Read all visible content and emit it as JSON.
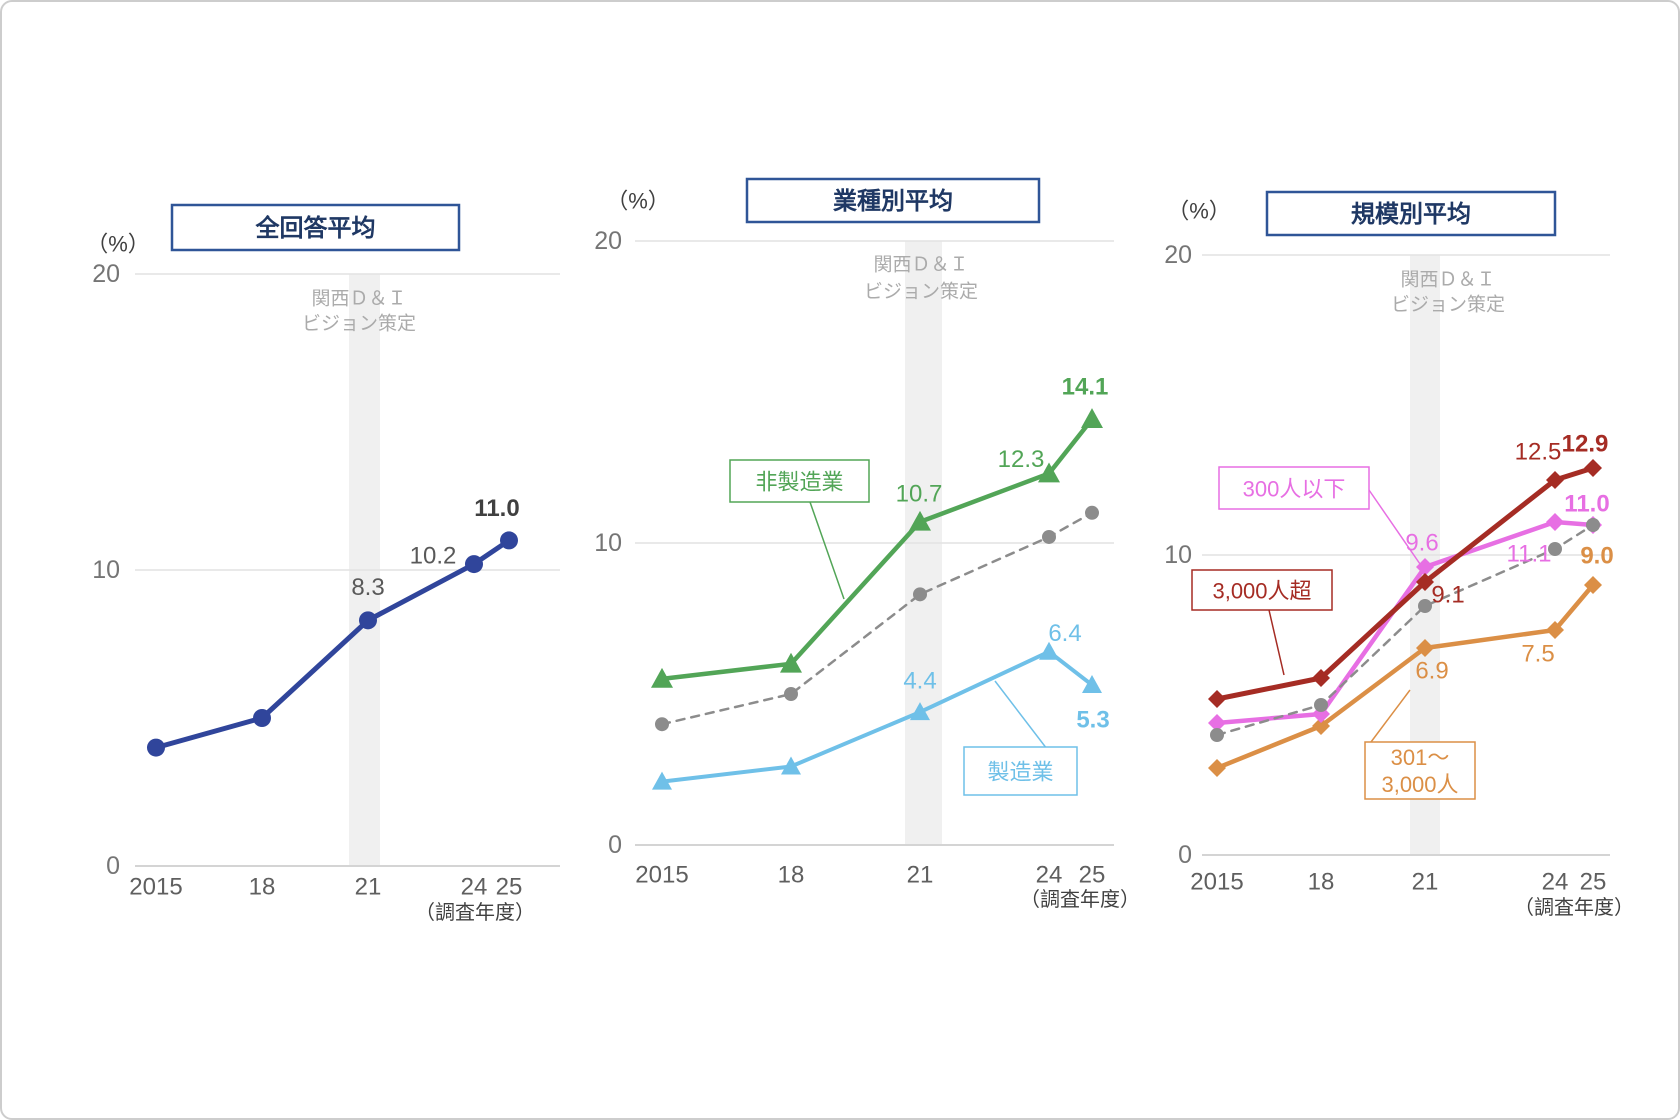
{
  "page": {
    "background": "#FFFFFF",
    "frame_color": "#CDCDCD"
  },
  "chart_data": [
    {
      "id": "overall-average",
      "type": "line",
      "title": "全回答平均",
      "unit": "（%）",
      "x_categories": [
        "2015",
        "18",
        "21",
        "24",
        "25"
      ],
      "x_axis_note": "（調査年度）",
      "ylim": [
        0,
        20
      ],
      "y_ticks": [
        20,
        10,
        0
      ],
      "grid": "horizontal",
      "legend_position": "none",
      "event_band": {
        "at_category": "21",
        "label": [
          "関西Ｄ＆Ｉ",
          "ビジョン策定"
        ],
        "color": "#F0F0F0",
        "text_color": "#ABABAB"
      },
      "series": [
        {
          "id": "overall",
          "name": "全回答平均",
          "color": "#30459B",
          "marker": "circle",
          "marker_size": 9,
          "dashed": false,
          "stroke_width": 5,
          "values": [
            4.0,
            5.0,
            8.3,
            10.2,
            11.0
          ],
          "labels": [
            {
              "i": 2,
              "t": "8.3",
              "b": false,
              "c": "#595959"
            },
            {
              "i": 3,
              "t": "10.2",
              "b": false,
              "c": "#595959"
            },
            {
              "i": 4,
              "t": "11.0",
              "b": true,
              "c": "#404040"
            }
          ]
        }
      ]
    },
    {
      "id": "by-industry",
      "type": "line",
      "title": "業種別平均",
      "unit": "（%）",
      "x_categories": [
        "2015",
        "18",
        "21",
        "24",
        "25"
      ],
      "x_axis_note": "（調査年度）",
      "ylim": [
        0,
        20
      ],
      "y_ticks": [
        20,
        10,
        0
      ],
      "grid": "horizontal",
      "legend_position": "callout-boxes",
      "event_band": {
        "at_category": "21",
        "label": [
          "関西Ｄ＆Ｉ",
          "ビジョン策定"
        ],
        "color": "#F0F0F0",
        "text_color": "#ABABAB"
      },
      "series": [
        {
          "id": "overall-ref",
          "name": "全回答平均",
          "color": "#8C8C8C",
          "marker": "circle",
          "marker_size": 7,
          "dashed": true,
          "stroke_width": 2.5,
          "values": [
            4.0,
            5.0,
            8.3,
            10.2,
            11.0
          ],
          "labels": []
        },
        {
          "id": "manufacturing",
          "name": "製造業",
          "legend_lines": [
            "製造業"
          ],
          "color": "#6FC0E8",
          "marker": "triangle",
          "marker_size": 10,
          "dashed": false,
          "stroke_width": 4,
          "values": [
            2.1,
            2.6,
            4.4,
            6.4,
            5.3
          ],
          "labels": [
            {
              "i": 2,
              "t": "4.4",
              "b": false
            },
            {
              "i": 3,
              "t": "6.4",
              "b": false
            },
            {
              "i": 4,
              "t": "5.3",
              "b": true
            }
          ]
        },
        {
          "id": "non-manufacturing",
          "name": "非製造業",
          "legend_lines": [
            "非製造業"
          ],
          "color": "#52A557",
          "marker": "triangle",
          "marker_size": 11,
          "dashed": false,
          "stroke_width": 4.5,
          "values": [
            5.5,
            6.0,
            10.7,
            12.3,
            14.1
          ],
          "labels": [
            {
              "i": 2,
              "t": "10.7",
              "b": false
            },
            {
              "i": 3,
              "t": "12.3",
              "b": false
            },
            {
              "i": 4,
              "t": "14.1",
              "b": true
            }
          ]
        }
      ]
    },
    {
      "id": "by-company-size",
      "type": "line",
      "title": "規模別平均",
      "unit": "（%）",
      "x_categories": [
        "2015",
        "18",
        "21",
        "24",
        "25"
      ],
      "x_axis_note": "（調査年度）",
      "ylim": [
        0,
        20
      ],
      "y_ticks": [
        20,
        10,
        0
      ],
      "grid": "horizontal",
      "legend_position": "callout-boxes",
      "event_band": {
        "at_category": "21",
        "label": [
          "関西Ｄ＆Ｉ",
          "ビジョン策定"
        ],
        "color": "#F0F0F0",
        "text_color": "#ABABAB"
      },
      "series": [
        {
          "id": "size-301-3000",
          "name": "301〜3,000人",
          "legend_lines": [
            "301〜",
            "3,000人"
          ],
          "color": "#DB8F46",
          "marker": "diamond",
          "marker_size": 9,
          "dashed": false,
          "stroke_width": 4.5,
          "values": [
            2.9,
            4.3,
            6.9,
            7.5,
            9.0
          ],
          "labels": [
            {
              "i": 2,
              "t": "6.9",
              "b": false
            },
            {
              "i": 3,
              "t": "7.5",
              "b": false
            },
            {
              "i": 4,
              "t": "9.0",
              "b": true
            }
          ]
        },
        {
          "id": "size-under-300",
          "name": "300人以下",
          "legend_lines": [
            "300人以下"
          ],
          "color": "#E76FE3",
          "marker": "diamond",
          "marker_size": 9,
          "dashed": false,
          "stroke_width": 4.5,
          "values": [
            4.4,
            4.7,
            9.6,
            11.1,
            11.0
          ],
          "labels": [
            {
              "i": 2,
              "t": "9.6",
              "b": false
            },
            {
              "i": 3,
              "t": "11.1",
              "b": false
            },
            {
              "i": 4,
              "t": "11.0",
              "b": true
            }
          ]
        },
        {
          "id": "overall-ref",
          "name": "全回答平均",
          "color": "#8C8C8C",
          "marker": "circle",
          "marker_size": 7,
          "dashed": true,
          "stroke_width": 2.5,
          "values": [
            4.0,
            5.0,
            8.3,
            10.2,
            11.0
          ],
          "labels": []
        },
        {
          "id": "size-over-3000",
          "name": "3,000人超",
          "legend_lines": [
            "3,000人超"
          ],
          "color": "#A52C24",
          "marker": "diamond",
          "marker_size": 9,
          "dashed": false,
          "stroke_width": 5,
          "values": [
            5.2,
            5.9,
            9.1,
            12.5,
            12.9
          ],
          "labels": [
            {
              "i": 2,
              "t": "9.1",
              "b": false
            },
            {
              "i": 3,
              "t": "12.5",
              "b": false
            },
            {
              "i": 4,
              "t": "12.9",
              "b": true
            }
          ]
        }
      ]
    }
  ],
  "style": {
    "title_text_color": "#1F3864",
    "title_border_color": "#2F5597",
    "axis_tick_color": "#666666",
    "unit_label_color": "#404040",
    "note_color": "#404040",
    "gridline_color": "#E2E2E2",
    "axis_line_color": "#D4D4D4"
  }
}
